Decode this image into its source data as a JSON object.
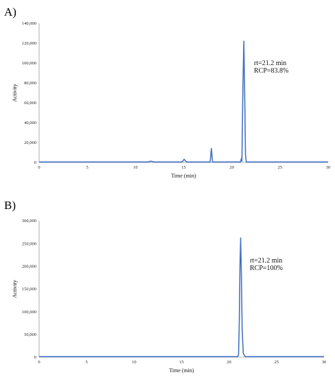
{
  "chart_data": [
    {
      "type": "line",
      "panel_label": "A)",
      "xlabel": "Time (min)",
      "ylabel": "Activity",
      "xlim": [
        0,
        30
      ],
      "ylim": [
        0,
        140000
      ],
      "x_ticks": [
        0,
        5,
        10,
        15,
        20,
        25,
        30
      ],
      "y_ticks": [
        0,
        20000,
        40000,
        60000,
        80000,
        100000,
        120000,
        140000
      ],
      "y_tick_labels": [
        "0",
        "20,000",
        "40,000",
        "60,000",
        "80,000",
        "100,000",
        "120,000",
        "140,000"
      ],
      "grid": false,
      "legend": "none",
      "annotations": [
        "rt=21.2 min",
        "RCP=83.8%"
      ],
      "color": "#4472C4",
      "series": [
        {
          "x": [
            0,
            11.3,
            11.6,
            11.9,
            14.85,
            15.05,
            15.3,
            17.75,
            17.88,
            18.0,
            20.9,
            21.0,
            21.05,
            21.15,
            21.25,
            21.35,
            21.42,
            21.5,
            30
          ],
          "y": [
            500,
            500,
            1300,
            500,
            500,
            3200,
            500,
            500,
            14000,
            500,
            500,
            4200,
            1200,
            75000,
            122000,
            60000,
            8000,
            500,
            500
          ]
        }
      ]
    },
    {
      "type": "line",
      "panel_label": "B)",
      "xlabel": "Time (min)",
      "ylabel": "Activity",
      "xlim": [
        0,
        30
      ],
      "ylim": [
        0,
        300000
      ],
      "x_ticks": [
        0,
        5,
        10,
        15,
        20,
        25,
        30
      ],
      "y_ticks": [
        0,
        50000,
        100000,
        150000,
        200000,
        250000,
        300000
      ],
      "y_tick_labels": [
        "0",
        "50,000",
        "100,000",
        "150,000",
        "200,000",
        "250,000",
        "300,000"
      ],
      "grid": false,
      "legend": "none",
      "annotations": [
        "rt=21.2 min",
        "RCP=100%"
      ],
      "color": "#4472C4",
      "series": [
        {
          "x": [
            0,
            20.9,
            21.0,
            21.08,
            21.15,
            21.22,
            21.3,
            21.38,
            21.5,
            21.7,
            30
          ],
          "y": [
            1000,
            1000,
            5000,
            80000,
            200000,
            262000,
            180000,
            60000,
            8000,
            1000,
            1000
          ]
        }
      ]
    }
  ]
}
